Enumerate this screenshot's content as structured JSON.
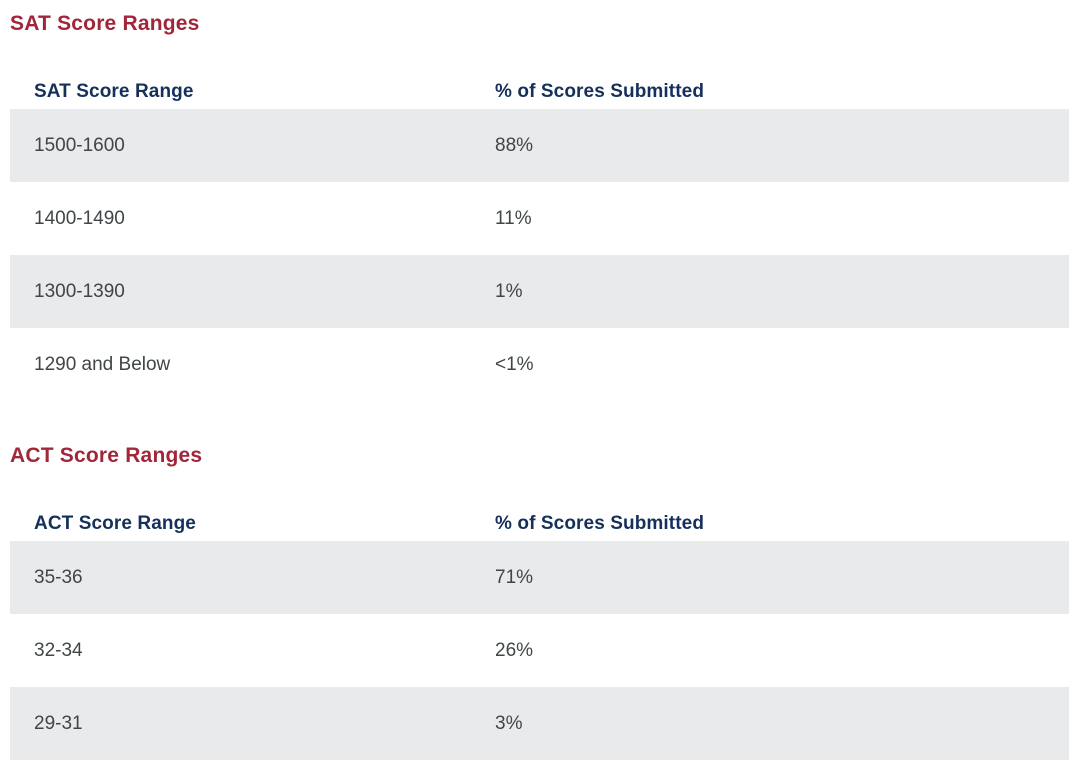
{
  "colors": {
    "section_title": "#a2263a",
    "table_header_text": "#16305c",
    "cell_text": "#404547",
    "row_stripe_background": "#e8eaeb",
    "page_background": "#ffffff"
  },
  "sections": [
    {
      "title": "SAT Score Ranges",
      "columns": [
        "SAT Score Range",
        "% of Scores Submitted"
      ],
      "rows": [
        [
          "1500-1600",
          "88%"
        ],
        [
          "1400-1490",
          "11%"
        ],
        [
          "1300-1390",
          "1%"
        ],
        [
          "1290 and Below",
          "<1%"
        ]
      ]
    },
    {
      "title": "ACT Score Ranges",
      "columns": [
        "ACT Score Range",
        "% of Scores Submitted"
      ],
      "rows": [
        [
          "35-36",
          "71%"
        ],
        [
          "32-34",
          "26%"
        ],
        [
          "29-31",
          "3%"
        ]
      ]
    }
  ]
}
